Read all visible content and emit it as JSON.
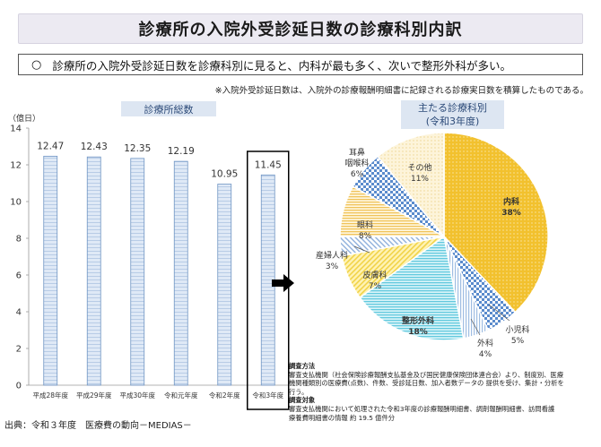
{
  "title": "診療所の入院外受診延日数の診療科別内訳",
  "summary": {
    "bullet": "○",
    "text": "診療所の入院外受診延日数を診療科別に見ると、内科が最も多く、次いで整形外科が多い。"
  },
  "note": "※入院外受診延日数は、入院外の診療報酬明細書に記録される診療実日数を積算したものである。",
  "bar_section_title": "診療所総数",
  "pie_section_title": [
    "主たる診療科別",
    "(令和3年度)"
  ],
  "unit_label": "（億日）",
  "method": {
    "heading1": "調査方法",
    "line1": "審査支払機関（社会保険診療報酬支払基金及び国民健康保険団体連合会）より、制度別、医療",
    "line2": "機関種類別の医療費(点数)、件数、受診延日数、加入者数データの 提供を受け、集計・分析を",
    "line3": "行う。",
    "heading2": "調査対象",
    "line4": "審査支払機関において処理された令和3年度の診療報酬明細書、調剤報酬明細書、訪問看護",
    "line5": "療養費明細書の情報 約 19.5 億件分"
  },
  "source": "出典：令和３年度　医療費の動向－MEDIAS－",
  "colors": {
    "bar_fill": "#dfe9f6",
    "bar_stroke": "#6f94c4",
    "highlight_box": "#000000",
    "title_bg": "#eceaf2",
    "section_title_bg": "#dde6f2",
    "section_title_text": "#2c4a78"
  },
  "chart_data": [
    {
      "type": "bar",
      "categories": [
        "平成28年度",
        "平成29年度",
        "平成30年度",
        "令和元年度",
        "令和2年度",
        "令和3年度"
      ],
      "values": [
        12.47,
        12.43,
        12.35,
        12.19,
        10.95,
        11.45
      ],
      "value_labels": [
        "12.47",
        "12.43",
        "12.35",
        "12.19",
        "10.95",
        "11.45"
      ],
      "ylabel": "（億日）",
      "ylim": [
        0,
        14
      ],
      "yticks": [
        0,
        2,
        4,
        6,
        8,
        10,
        12,
        14
      ],
      "highlighted_category": "令和3年度",
      "grid": false
    },
    {
      "type": "pie",
      "title": "主たる診療科別 (令和3年度)",
      "slices": [
        {
          "name": "内科",
          "value": 38,
          "label": "38%",
          "color": "#f2c12e",
          "pattern": "dots"
        },
        {
          "name": "小児科",
          "value": 5,
          "label": "5%",
          "color": "#6d9bd3",
          "pattern": "check"
        },
        {
          "name": "外科",
          "value": 4,
          "label": "4%",
          "color": "#9fbde2",
          "pattern": "vlines"
        },
        {
          "name": "整形外科",
          "value": 18,
          "label": "18%",
          "color": "#7fd8e8",
          "pattern": "hlines"
        },
        {
          "name": "皮膚科",
          "value": 7,
          "label": "7%",
          "color": "#f7dc63",
          "pattern": "diag"
        },
        {
          "name": "産婦人科",
          "value": 3,
          "label": "3%",
          "color": "#a7c3e6",
          "pattern": "diag2"
        },
        {
          "name": "眼科",
          "value": 8,
          "label": "8%",
          "color": "#f4cf74",
          "pattern": "hlines2"
        },
        {
          "name": "耳鼻咽喉科",
          "value": 6,
          "label": "6%",
          "color": "#8db1dc",
          "pattern": "check"
        },
        {
          "name": "その他",
          "value": 11,
          "label": "11%",
          "color": "#f9e3a8",
          "pattern": "dots2"
        }
      ]
    }
  ]
}
